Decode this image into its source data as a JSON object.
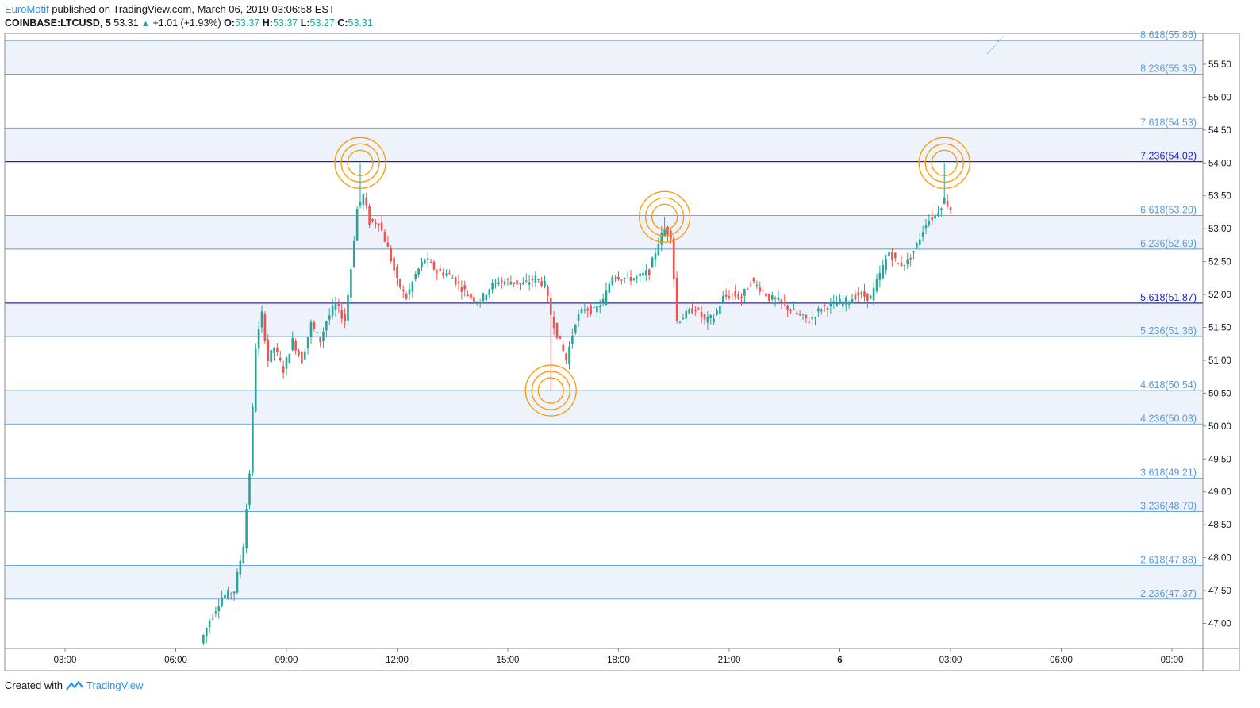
{
  "header": {
    "author": "EuroMotif",
    "published_text": " published on TradingView.com, March 06, 2019 03:06:58 EST",
    "symbol": "COINBASE:LTCUSD, 5",
    "price": "53.31",
    "change": "+1.01 (+1.93%)",
    "open_label": "O:",
    "open": "53.37",
    "high_label": "H:",
    "high": "53.37",
    "low_label": "L:",
    "low": "53.27",
    "close_label": "C:",
    "close": "53.31"
  },
  "footer": {
    "created_with": "Created with",
    "brand": "TradingView"
  },
  "colors": {
    "up": "#26a69a",
    "down": "#ef5350",
    "fib_line": "#5b9bd5",
    "fib_key": "#1e22cc",
    "fib_band": "#eef3fb",
    "circle": "#ff9800",
    "axis": "#131722"
  },
  "chart_data": {
    "type": "candlestick",
    "y_axis": {
      "ticks": [
        "47.00",
        "47.50",
        "48.00",
        "48.50",
        "49.00",
        "49.50",
        "50.00",
        "50.50",
        "51.00",
        "51.50",
        "52.00",
        "52.50",
        "53.00",
        "53.50",
        "54.00",
        "54.50",
        "55.00",
        "55.50"
      ],
      "range": [
        46.62,
        55.97
      ]
    },
    "x_axis": {
      "ticks": [
        "03:00",
        "06:00",
        "09:00",
        "12:00",
        "15:00",
        "18:00",
        "21:00",
        "6",
        "03:00",
        "06:00",
        "09:00"
      ]
    },
    "fib_levels": [
      {
        "label": "2.236(47.37)",
        "value": 47.37,
        "key": false
      },
      {
        "label": "2.618(47.88)",
        "value": 47.88,
        "key": false
      },
      {
        "label": "3.236(48.70)",
        "value": 48.7,
        "key": false
      },
      {
        "label": "3.618(49.21)",
        "value": 49.21,
        "key": false
      },
      {
        "label": "4.236(50.03)",
        "value": 50.03,
        "key": false
      },
      {
        "label": "4.618(50.54)",
        "value": 50.54,
        "key": false
      },
      {
        "label": "5.236(51.36)",
        "value": 51.36,
        "key": false
      },
      {
        "label": "5.618(51.87)",
        "value": 51.87,
        "key": true
      },
      {
        "label": "6.236(52.69)",
        "value": 52.69,
        "key": false
      },
      {
        "label": "6.618(53.20)",
        "value": 53.2,
        "key": false
      },
      {
        "label": "7.236(54.02)",
        "value": 54.02,
        "key": true
      },
      {
        "label": "7.618(54.53)",
        "value": 54.53,
        "key": false
      },
      {
        "label": "8.236(55.35)",
        "value": 55.35,
        "key": false
      },
      {
        "label": "8.618(55.86)",
        "value": 55.86,
        "key": false
      }
    ],
    "band_pairs": [
      [
        47.37,
        47.88
      ],
      [
        48.7,
        49.21
      ],
      [
        50.03,
        50.54
      ],
      [
        51.36,
        51.87
      ],
      [
        52.69,
        53.2
      ],
      [
        54.02,
        54.53
      ],
      [
        55.35,
        55.86
      ]
    ],
    "circle_markers": [
      {
        "time": "11:00",
        "price": 54.0
      },
      {
        "time": "16:10",
        "price": 50.54
      },
      {
        "time": "19:15",
        "price": 53.18
      },
      {
        "time": "02:50",
        "price": 54.0
      }
    ],
    "price_path": [
      [
        "06:45",
        46.7
      ],
      [
        "07:00",
        47.05
      ],
      [
        "07:20",
        47.4
      ],
      [
        "07:40",
        47.5
      ],
      [
        "07:55",
        48.2
      ],
      [
        "08:05",
        49.3
      ],
      [
        "08:15",
        51.2
      ],
      [
        "08:25",
        51.7
      ],
      [
        "08:35",
        51.0
      ],
      [
        "08:45",
        51.2
      ],
      [
        "09:00",
        50.85
      ],
      [
        "09:15",
        51.3
      ],
      [
        "09:30",
        51.0
      ],
      [
        "09:45",
        51.55
      ],
      [
        "10:00",
        51.3
      ],
      [
        "10:10",
        51.6
      ],
      [
        "10:25",
        51.85
      ],
      [
        "10:40",
        51.6
      ],
      [
        "10:50",
        52.4
      ],
      [
        "11:00",
        53.3
      ],
      [
        "11:10",
        53.5
      ],
      [
        "11:20",
        53.1
      ],
      [
        "11:35",
        53.1
      ],
      [
        "11:50",
        52.7
      ],
      [
        "12:05",
        52.2
      ],
      [
        "12:20",
        51.95
      ],
      [
        "12:35",
        52.3
      ],
      [
        "12:50",
        52.55
      ],
      [
        "13:10",
        52.35
      ],
      [
        "13:30",
        52.3
      ],
      [
        "13:50",
        52.1
      ],
      [
        "14:05",
        51.95
      ],
      [
        "14:20",
        51.9
      ],
      [
        "14:35",
        52.1
      ],
      [
        "14:50",
        52.2
      ],
      [
        "15:10",
        52.2
      ],
      [
        "15:30",
        52.15
      ],
      [
        "15:50",
        52.25
      ],
      [
        "16:05",
        52.15
      ],
      [
        "16:15",
        51.7
      ],
      [
        "16:25",
        51.4
      ],
      [
        "16:40",
        51.0
      ],
      [
        "16:55",
        51.6
      ],
      [
        "17:10",
        51.8
      ],
      [
        "17:25",
        51.75
      ],
      [
        "17:40",
        51.9
      ],
      [
        "17:55",
        52.3
      ],
      [
        "18:15",
        52.25
      ],
      [
        "18:35",
        52.25
      ],
      [
        "18:55",
        52.35
      ],
      [
        "19:10",
        52.8
      ],
      [
        "19:20",
        53.0
      ],
      [
        "19:30",
        52.9
      ],
      [
        "19:40",
        51.6
      ],
      [
        "19:55",
        51.7
      ],
      [
        "20:10",
        51.8
      ],
      [
        "20:25",
        51.6
      ],
      [
        "20:40",
        51.65
      ],
      [
        "20:55",
        51.95
      ],
      [
        "21:10",
        52.0
      ],
      [
        "21:25",
        51.95
      ],
      [
        "21:40",
        52.2
      ],
      [
        "21:55",
        52.1
      ],
      [
        "22:10",
        51.95
      ],
      [
        "22:25",
        51.9
      ],
      [
        "22:40",
        51.8
      ],
      [
        "22:55",
        51.7
      ],
      [
        "23:15",
        51.6
      ],
      [
        "23:35",
        51.8
      ],
      [
        "23:55",
        51.85
      ],
      [
        "00:15",
        51.9
      ],
      [
        "00:35",
        52.0
      ],
      [
        "00:55",
        51.95
      ],
      [
        "01:10",
        52.3
      ],
      [
        "01:25",
        52.65
      ],
      [
        "01:40",
        52.45
      ],
      [
        "01:55",
        52.5
      ],
      [
        "02:10",
        52.75
      ],
      [
        "02:25",
        53.1
      ],
      [
        "02:40",
        53.2
      ],
      [
        "02:55",
        53.45
      ],
      [
        "03:05",
        53.31
      ]
    ]
  }
}
